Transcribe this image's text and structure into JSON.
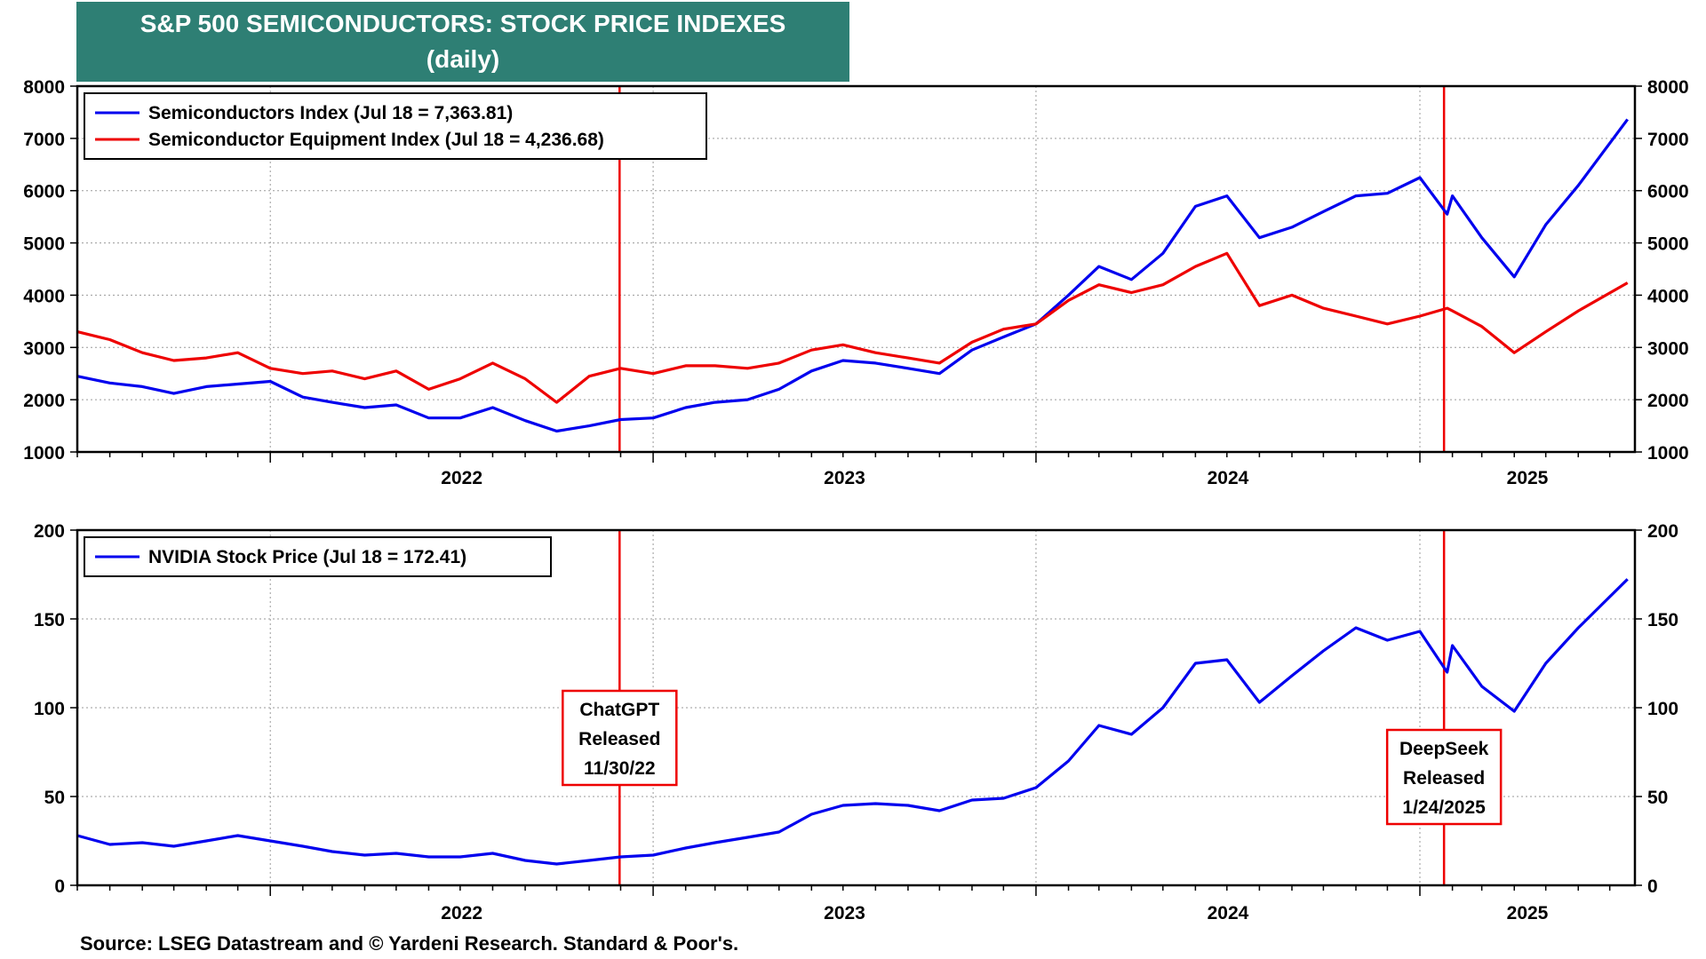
{
  "title": {
    "line1": "S&P 500 SEMICONDUCTORS: STOCK PRICE INDEXES",
    "line2": "(daily)"
  },
  "source": "Source: LSEG Datastream and © Yardeni Research. Standard & Poor's.",
  "colors": {
    "blue": "#0000ee",
    "red": "#ee0000",
    "title_bg": "#2e7f74",
    "event_line": "#ee0000"
  },
  "chart_data": [
    {
      "type": "line",
      "x_range": [
        "2021-07-01",
        "2025-07-25"
      ],
      "x_tick_labels": [
        "2022",
        "2023",
        "2024",
        "2025"
      ],
      "ylim": [
        1000,
        8000
      ],
      "y_ticks": [
        "1000",
        "2000",
        "3000",
        "4000",
        "5000",
        "6000",
        "7000",
        "8000"
      ],
      "grid": true,
      "legend_placement": "top-left",
      "series": [
        {
          "name": "Semiconductors Index (Jul 18 = 7,363.81)",
          "color": "#0000ee",
          "points": [
            [
              "2021-07-01",
              2450
            ],
            [
              "2021-08-01",
              2320
            ],
            [
              "2021-09-01",
              2250
            ],
            [
              "2021-10-01",
              2120
            ],
            [
              "2021-11-01",
              2250
            ],
            [
              "2021-12-01",
              2300
            ],
            [
              "2022-01-01",
              2350
            ],
            [
              "2022-02-01",
              2050
            ],
            [
              "2022-03-01",
              1950
            ],
            [
              "2022-04-01",
              1850
            ],
            [
              "2022-05-01",
              1900
            ],
            [
              "2022-06-01",
              1650
            ],
            [
              "2022-07-01",
              1650
            ],
            [
              "2022-08-01",
              1850
            ],
            [
              "2022-09-01",
              1600
            ],
            [
              "2022-10-01",
              1400
            ],
            [
              "2022-11-01",
              1500
            ],
            [
              "2022-12-01",
              1620
            ],
            [
              "2023-01-01",
              1650
            ],
            [
              "2023-02-01",
              1850
            ],
            [
              "2023-03-01",
              1950
            ],
            [
              "2023-04-01",
              2000
            ],
            [
              "2023-05-01",
              2200
            ],
            [
              "2023-06-01",
              2550
            ],
            [
              "2023-07-01",
              2750
            ],
            [
              "2023-08-01",
              2700
            ],
            [
              "2023-09-01",
              2600
            ],
            [
              "2023-10-01",
              2500
            ],
            [
              "2023-11-01",
              2950
            ],
            [
              "2023-12-01",
              3200
            ],
            [
              "2024-01-01",
              3450
            ],
            [
              "2024-02-01",
              4000
            ],
            [
              "2024-03-01",
              4550
            ],
            [
              "2024-04-01",
              4300
            ],
            [
              "2024-05-01",
              4800
            ],
            [
              "2024-06-01",
              5700
            ],
            [
              "2024-07-01",
              5900
            ],
            [
              "2024-08-01",
              5100
            ],
            [
              "2024-09-01",
              5300
            ],
            [
              "2024-10-01",
              5600
            ],
            [
              "2024-11-01",
              5900
            ],
            [
              "2024-12-01",
              5950
            ],
            [
              "2025-01-01",
              6250
            ],
            [
              "2025-01-27",
              5550
            ],
            [
              "2025-02-01",
              5900
            ],
            [
              "2025-03-01",
              5100
            ],
            [
              "2025-04-01",
              4350
            ],
            [
              "2025-05-01",
              5350
            ],
            [
              "2025-06-01",
              6100
            ],
            [
              "2025-07-18",
              7364
            ]
          ]
        },
        {
          "name": "Semiconductor Equipment Index (Jul 18 = 4,236.68)",
          "color": "#ee0000",
          "points": [
            [
              "2021-07-01",
              3300
            ],
            [
              "2021-08-01",
              3150
            ],
            [
              "2021-09-01",
              2900
            ],
            [
              "2021-10-01",
              2750
            ],
            [
              "2021-11-01",
              2800
            ],
            [
              "2021-12-01",
              2900
            ],
            [
              "2022-01-01",
              2600
            ],
            [
              "2022-02-01",
              2500
            ],
            [
              "2022-03-01",
              2550
            ],
            [
              "2022-04-01",
              2400
            ],
            [
              "2022-05-01",
              2550
            ],
            [
              "2022-06-01",
              2200
            ],
            [
              "2022-07-01",
              2400
            ],
            [
              "2022-08-01",
              2700
            ],
            [
              "2022-09-01",
              2400
            ],
            [
              "2022-10-01",
              1950
            ],
            [
              "2022-11-01",
              2450
            ],
            [
              "2022-12-01",
              2600
            ],
            [
              "2023-01-01",
              2500
            ],
            [
              "2023-02-01",
              2650
            ],
            [
              "2023-03-01",
              2650
            ],
            [
              "2023-04-01",
              2600
            ],
            [
              "2023-05-01",
              2700
            ],
            [
              "2023-06-01",
              2950
            ],
            [
              "2023-07-01",
              3050
            ],
            [
              "2023-08-01",
              2900
            ],
            [
              "2023-09-01",
              2800
            ],
            [
              "2023-10-01",
              2700
            ],
            [
              "2023-11-01",
              3100
            ],
            [
              "2023-12-01",
              3350
            ],
            [
              "2024-01-01",
              3450
            ],
            [
              "2024-02-01",
              3900
            ],
            [
              "2024-03-01",
              4200
            ],
            [
              "2024-04-01",
              4050
            ],
            [
              "2024-05-01",
              4200
            ],
            [
              "2024-06-01",
              4550
            ],
            [
              "2024-07-01",
              4800
            ],
            [
              "2024-08-01",
              3800
            ],
            [
              "2024-09-01",
              4000
            ],
            [
              "2024-10-01",
              3750
            ],
            [
              "2024-11-01",
              3600
            ],
            [
              "2024-12-01",
              3450
            ],
            [
              "2025-01-01",
              3600
            ],
            [
              "2025-01-27",
              3750
            ],
            [
              "2025-02-01",
              3700
            ],
            [
              "2025-03-01",
              3400
            ],
            [
              "2025-04-01",
              2900
            ],
            [
              "2025-05-01",
              3300
            ],
            [
              "2025-06-01",
              3700
            ],
            [
              "2025-07-18",
              4237
            ]
          ]
        }
      ]
    },
    {
      "type": "line",
      "x_range": [
        "2021-07-01",
        "2025-07-25"
      ],
      "x_tick_labels": [
        "2022",
        "2023",
        "2024",
        "2025"
      ],
      "ylim": [
        0,
        200
      ],
      "y_ticks": [
        "0",
        "50",
        "100",
        "150",
        "200"
      ],
      "grid": true,
      "legend_placement": "top-left",
      "series": [
        {
          "name": "NVIDIA Stock Price (Jul 18 = 172.41)",
          "color": "#0000ee",
          "points": [
            [
              "2021-07-01",
              28
            ],
            [
              "2021-08-01",
              23
            ],
            [
              "2021-09-01",
              24
            ],
            [
              "2021-10-01",
              22
            ],
            [
              "2021-11-01",
              25
            ],
            [
              "2021-12-01",
              28
            ],
            [
              "2022-01-01",
              25
            ],
            [
              "2022-02-01",
              22
            ],
            [
              "2022-03-01",
              19
            ],
            [
              "2022-04-01",
              17
            ],
            [
              "2022-05-01",
              18
            ],
            [
              "2022-06-01",
              16
            ],
            [
              "2022-07-01",
              16
            ],
            [
              "2022-08-01",
              18
            ],
            [
              "2022-09-01",
              14
            ],
            [
              "2022-10-01",
              12
            ],
            [
              "2022-11-01",
              14
            ],
            [
              "2022-12-01",
              16
            ],
            [
              "2023-01-01",
              17
            ],
            [
              "2023-02-01",
              21
            ],
            [
              "2023-03-01",
              24
            ],
            [
              "2023-04-01",
              27
            ],
            [
              "2023-05-01",
              30
            ],
            [
              "2023-06-01",
              40
            ],
            [
              "2023-07-01",
              45
            ],
            [
              "2023-08-01",
              46
            ],
            [
              "2023-09-01",
              45
            ],
            [
              "2023-10-01",
              42
            ],
            [
              "2023-11-01",
              48
            ],
            [
              "2023-12-01",
              49
            ],
            [
              "2024-01-01",
              55
            ],
            [
              "2024-02-01",
              70
            ],
            [
              "2024-03-01",
              90
            ],
            [
              "2024-04-01",
              85
            ],
            [
              "2024-05-01",
              100
            ],
            [
              "2024-06-01",
              125
            ],
            [
              "2024-07-01",
              127
            ],
            [
              "2024-08-01",
              103
            ],
            [
              "2024-09-01",
              118
            ],
            [
              "2024-10-01",
              132
            ],
            [
              "2024-11-01",
              145
            ],
            [
              "2024-12-01",
              138
            ],
            [
              "2025-01-01",
              143
            ],
            [
              "2025-01-27",
              120
            ],
            [
              "2025-02-01",
              135
            ],
            [
              "2025-03-01",
              112
            ],
            [
              "2025-04-01",
              98
            ],
            [
              "2025-05-01",
              125
            ],
            [
              "2025-06-01",
              145
            ],
            [
              "2025-07-18",
              172.41
            ]
          ]
        }
      ]
    }
  ],
  "events": [
    {
      "date": "2022-11-30",
      "label_lines": [
        "ChatGPT",
        "Released",
        "11/30/22"
      ]
    },
    {
      "date": "2025-01-24",
      "label_lines": [
        "DeepSeek",
        "Released",
        "1/24/2025"
      ]
    }
  ]
}
